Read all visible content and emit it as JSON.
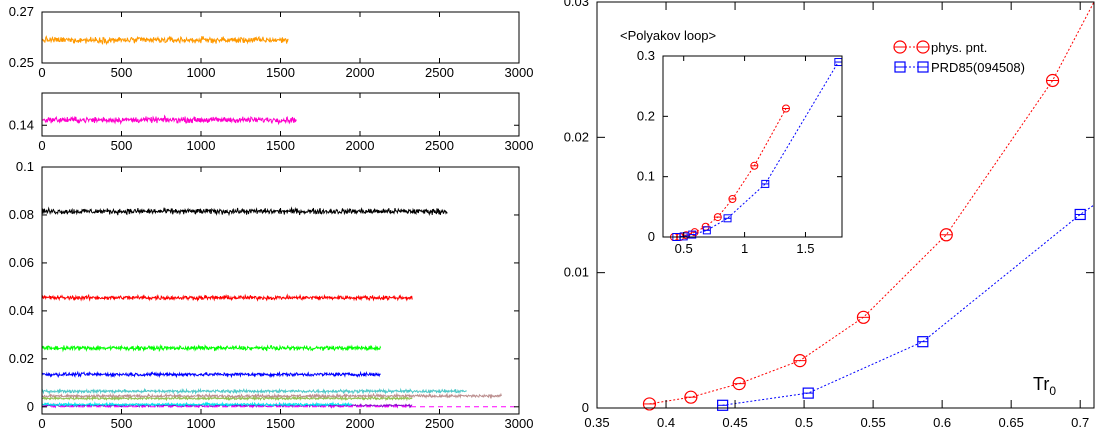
{
  "chart_data": [
    {
      "type": "line",
      "panel": "history-top",
      "xlim": [
        0,
        3000
      ],
      "ylim": [
        0.25,
        0.27
      ],
      "x_ticks": [
        0,
        500,
        1000,
        1500,
        2000,
        2500,
        3000
      ],
      "y_ticks": [
        0.25,
        0.27
      ],
      "series": [
        {
          "color": "#ff9900",
          "x_end": 1550,
          "mean": 0.259,
          "amplitude": 0.0018
        }
      ]
    },
    {
      "type": "line",
      "panel": "history-middle",
      "xlim": [
        0,
        3000
      ],
      "ylim": [
        0.13,
        0.17
      ],
      "x_ticks": [
        0,
        500,
        1000,
        1500,
        2000,
        2500,
        3000
      ],
      "y_ticks": [
        0.14
      ],
      "series": [
        {
          "color": "#ff00cc",
          "x_end": 1600,
          "mean": 0.145,
          "amplitude": 0.004
        }
      ]
    },
    {
      "type": "line",
      "panel": "history-bottom",
      "xlim": [
        0,
        3000
      ],
      "ylim": [
        -0.003,
        0.1
      ],
      "x_ticks": [
        0,
        500,
        1000,
        1500,
        2000,
        2500,
        3000
      ],
      "y_ticks": [
        0,
        0.02,
        0.04,
        0.06,
        0.08,
        0.1
      ],
      "series": [
        {
          "color": "#000000",
          "x_end": 2550,
          "mean": 0.0815,
          "amplitude": 0.0017
        },
        {
          "color": "#ff0000",
          "x_end": 2330,
          "mean": 0.0455,
          "amplitude": 0.0013
        },
        {
          "color": "#00ff00",
          "x_end": 2130,
          "mean": 0.0245,
          "amplitude": 0.0013
        },
        {
          "color": "#0000ff",
          "x_end": 2130,
          "mean": 0.0135,
          "amplitude": 0.0011
        },
        {
          "color": "#bc8f8f",
          "x_end": 2890,
          "mean": 0.0045,
          "amplitude": 0.0009
        },
        {
          "color": "#4fc8c8",
          "x_end": 2670,
          "mean": 0.0065,
          "amplitude": 0.0009
        },
        {
          "color": "#90c050",
          "x_end": 2330,
          "mean": 0.0035,
          "amplitude": 0.0007
        },
        {
          "color": "#9000d0",
          "x_end": 2330,
          "mean": 0.0005,
          "amplitude": 0.0007
        },
        {
          "color": "#00e5ee",
          "x_end": 1950,
          "mean": 0.001,
          "amplitude": 0.0007
        }
      ],
      "reference_line": {
        "y": 0,
        "color": "#ff00ff",
        "dash": true
      }
    },
    {
      "type": "line",
      "panel": "main",
      "xlabel": "Tr",
      "xlabel_sub": "0",
      "xlim": [
        0.35,
        0.71
      ],
      "ylim": [
        0,
        0.03
      ],
      "x_ticks": [
        "0.35",
        "0.4",
        "0.45",
        "0.5",
        "0.55",
        "0.6",
        "0.65",
        "0.7"
      ],
      "y_ticks": [
        "0",
        "0.01",
        "0.02",
        "0.03"
      ],
      "legend_position": "top-right",
      "series": [
        {
          "name": "phys. pnt.",
          "color": "#ff0000",
          "marker": "circle",
          "x": [
            0.388,
            0.418,
            0.453,
            0.497,
            0.543,
            0.603,
            0.68,
            0.712
          ],
          "y": [
            0.0003,
            0.0008,
            0.0018,
            0.0035,
            0.0067,
            0.0128,
            0.0242,
            0.0305
          ],
          "markers_up_to": 7
        },
        {
          "name": "PRD85(094508)",
          "color": "#0000ff",
          "marker": "square",
          "x": [
            0.441,
            0.503,
            0.586,
            0.7,
            0.712
          ],
          "y": [
            0.0002,
            0.0011,
            0.0049,
            0.0143,
            0.015
          ],
          "markers_up_to": 4
        }
      ]
    },
    {
      "type": "line",
      "panel": "inset",
      "title": "<Polyakov loop>",
      "xlim": [
        0.33,
        1.8
      ],
      "ylim": [
        0,
        0.3
      ],
      "x_ticks": [
        "0.5",
        "1",
        "1.5"
      ],
      "y_ticks": [
        "0",
        "0.1",
        "0.2",
        "0.3"
      ],
      "series": [
        {
          "name": "phys. pnt.",
          "color": "#ff0000",
          "marker": "circle",
          "x": [
            0.42,
            0.47,
            0.52,
            0.59,
            0.68,
            0.78,
            0.9,
            1.08,
            1.34
          ],
          "y": [
            0.0,
            0.0,
            0.003,
            0.008,
            0.017,
            0.033,
            0.063,
            0.118,
            0.213
          ]
        },
        {
          "name": "PRD85(094508)",
          "color": "#0000ff",
          "marker": "square",
          "x": [
            0.44,
            0.5,
            0.57,
            0.69,
            0.86,
            1.17,
            1.77
          ],
          "y": [
            0.0,
            0.001,
            0.004,
            0.011,
            0.031,
            0.088,
            0.29
          ]
        }
      ]
    }
  ]
}
